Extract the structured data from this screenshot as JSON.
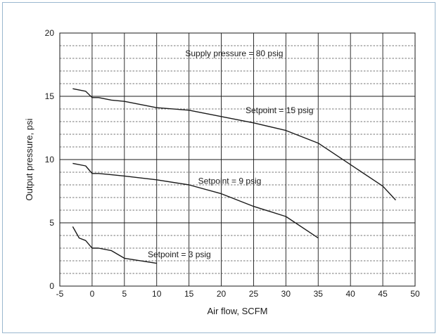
{
  "chart_data": {
    "type": "line",
    "title": "",
    "xlabel": "Air flow, SCFM",
    "ylabel": "Output pressure, psi",
    "xlim": [
      -5,
      50
    ],
    "ylim": [
      0,
      20
    ],
    "x_ticks": [
      -5,
      0,
      5,
      10,
      15,
      20,
      25,
      30,
      35,
      40,
      45,
      50
    ],
    "y_ticks": [
      0,
      5,
      10,
      15,
      20
    ],
    "x_tick_labels": [
      "-5",
      "0",
      "5",
      "10",
      "15",
      "20",
      "25",
      "30",
      "35",
      "40",
      "45",
      "50"
    ],
    "y_tick_labels": [
      "0",
      "5",
      "10",
      "15",
      "20"
    ],
    "grid": {
      "major_solid": true,
      "minor_dashed_y_step": 1
    },
    "line_color": "#1a1a1a",
    "series": [
      {
        "x": [
          -3,
          -1,
          0,
          1,
          3,
          5,
          10,
          15,
          20,
          25,
          30,
          35,
          40,
          45,
          47
        ],
        "y": [
          15.6,
          15.4,
          14.9,
          14.9,
          14.7,
          14.6,
          14.1,
          13.9,
          13.4,
          12.9,
          12.3,
          11.3,
          9.6,
          7.9,
          6.8
        ]
      },
      {
        "x": [
          -3,
          -1,
          0,
          1,
          3,
          5,
          10,
          15,
          20,
          25,
          30,
          35
        ],
        "y": [
          9.7,
          9.5,
          8.9,
          8.9,
          8.8,
          8.7,
          8.4,
          8.0,
          7.3,
          6.3,
          5.5,
          3.8
        ]
      },
      {
        "x": [
          -3,
          -2,
          -1,
          0,
          1,
          3,
          5,
          10
        ],
        "y": [
          4.7,
          3.8,
          3.6,
          3.0,
          3.0,
          2.8,
          2.2,
          1.8
        ]
      }
    ],
    "annotations": [
      {
        "id": "supply",
        "text": "Supply pressure = 80 psig",
        "x": 22,
        "y": 18.4
      },
      {
        "id": "sp15",
        "text": "Setpoint = 15 psig",
        "x": 29,
        "y": 13.9
      },
      {
        "id": "sp9",
        "text": "Setpoint = 9 psig",
        "x": 21.3,
        "y": 8.3
      },
      {
        "id": "sp3",
        "text": "Setpoint = 3 psig",
        "x": 13.5,
        "y": 2.5
      }
    ]
  }
}
